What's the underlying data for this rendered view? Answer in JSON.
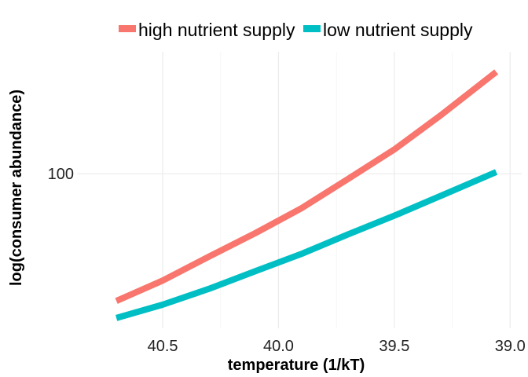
{
  "chart_data": {
    "type": "line",
    "xlabel": "temperature (1/kT)",
    "ylabel": "log(consumer abundance)",
    "x_reversed": true,
    "y_log_scale": true,
    "xlim": [
      40.87,
      38.95
    ],
    "ylim": [
      41,
      202
    ],
    "x_ticks": [
      40.5,
      40.0,
      39.5,
      39.0
    ],
    "x_tick_labels": [
      "40.5",
      "40.0",
      "39.5",
      "39.0"
    ],
    "y_ticks": [
      100
    ],
    "y_tick_labels": [
      "100"
    ],
    "grid": true,
    "legend_position": "top",
    "series": [
      {
        "name": "high nutrient supply",
        "color": "#F8766D",
        "x": [
          40.7,
          40.5,
          40.3,
          40.1,
          39.9,
          39.7,
          39.5,
          39.3,
          39.06
        ],
        "y": [
          48,
          54,
          62,
          71,
          82,
          97,
          115,
          140,
          180
        ]
      },
      {
        "name": "low nutrient supply",
        "color": "#00BFC4",
        "x": [
          40.7,
          40.5,
          40.3,
          40.1,
          39.9,
          39.7,
          39.5,
          39.3,
          39.06
        ],
        "y": [
          43.5,
          47,
          51.5,
          57,
          63,
          70.5,
          78.5,
          88,
          101
        ]
      }
    ]
  }
}
